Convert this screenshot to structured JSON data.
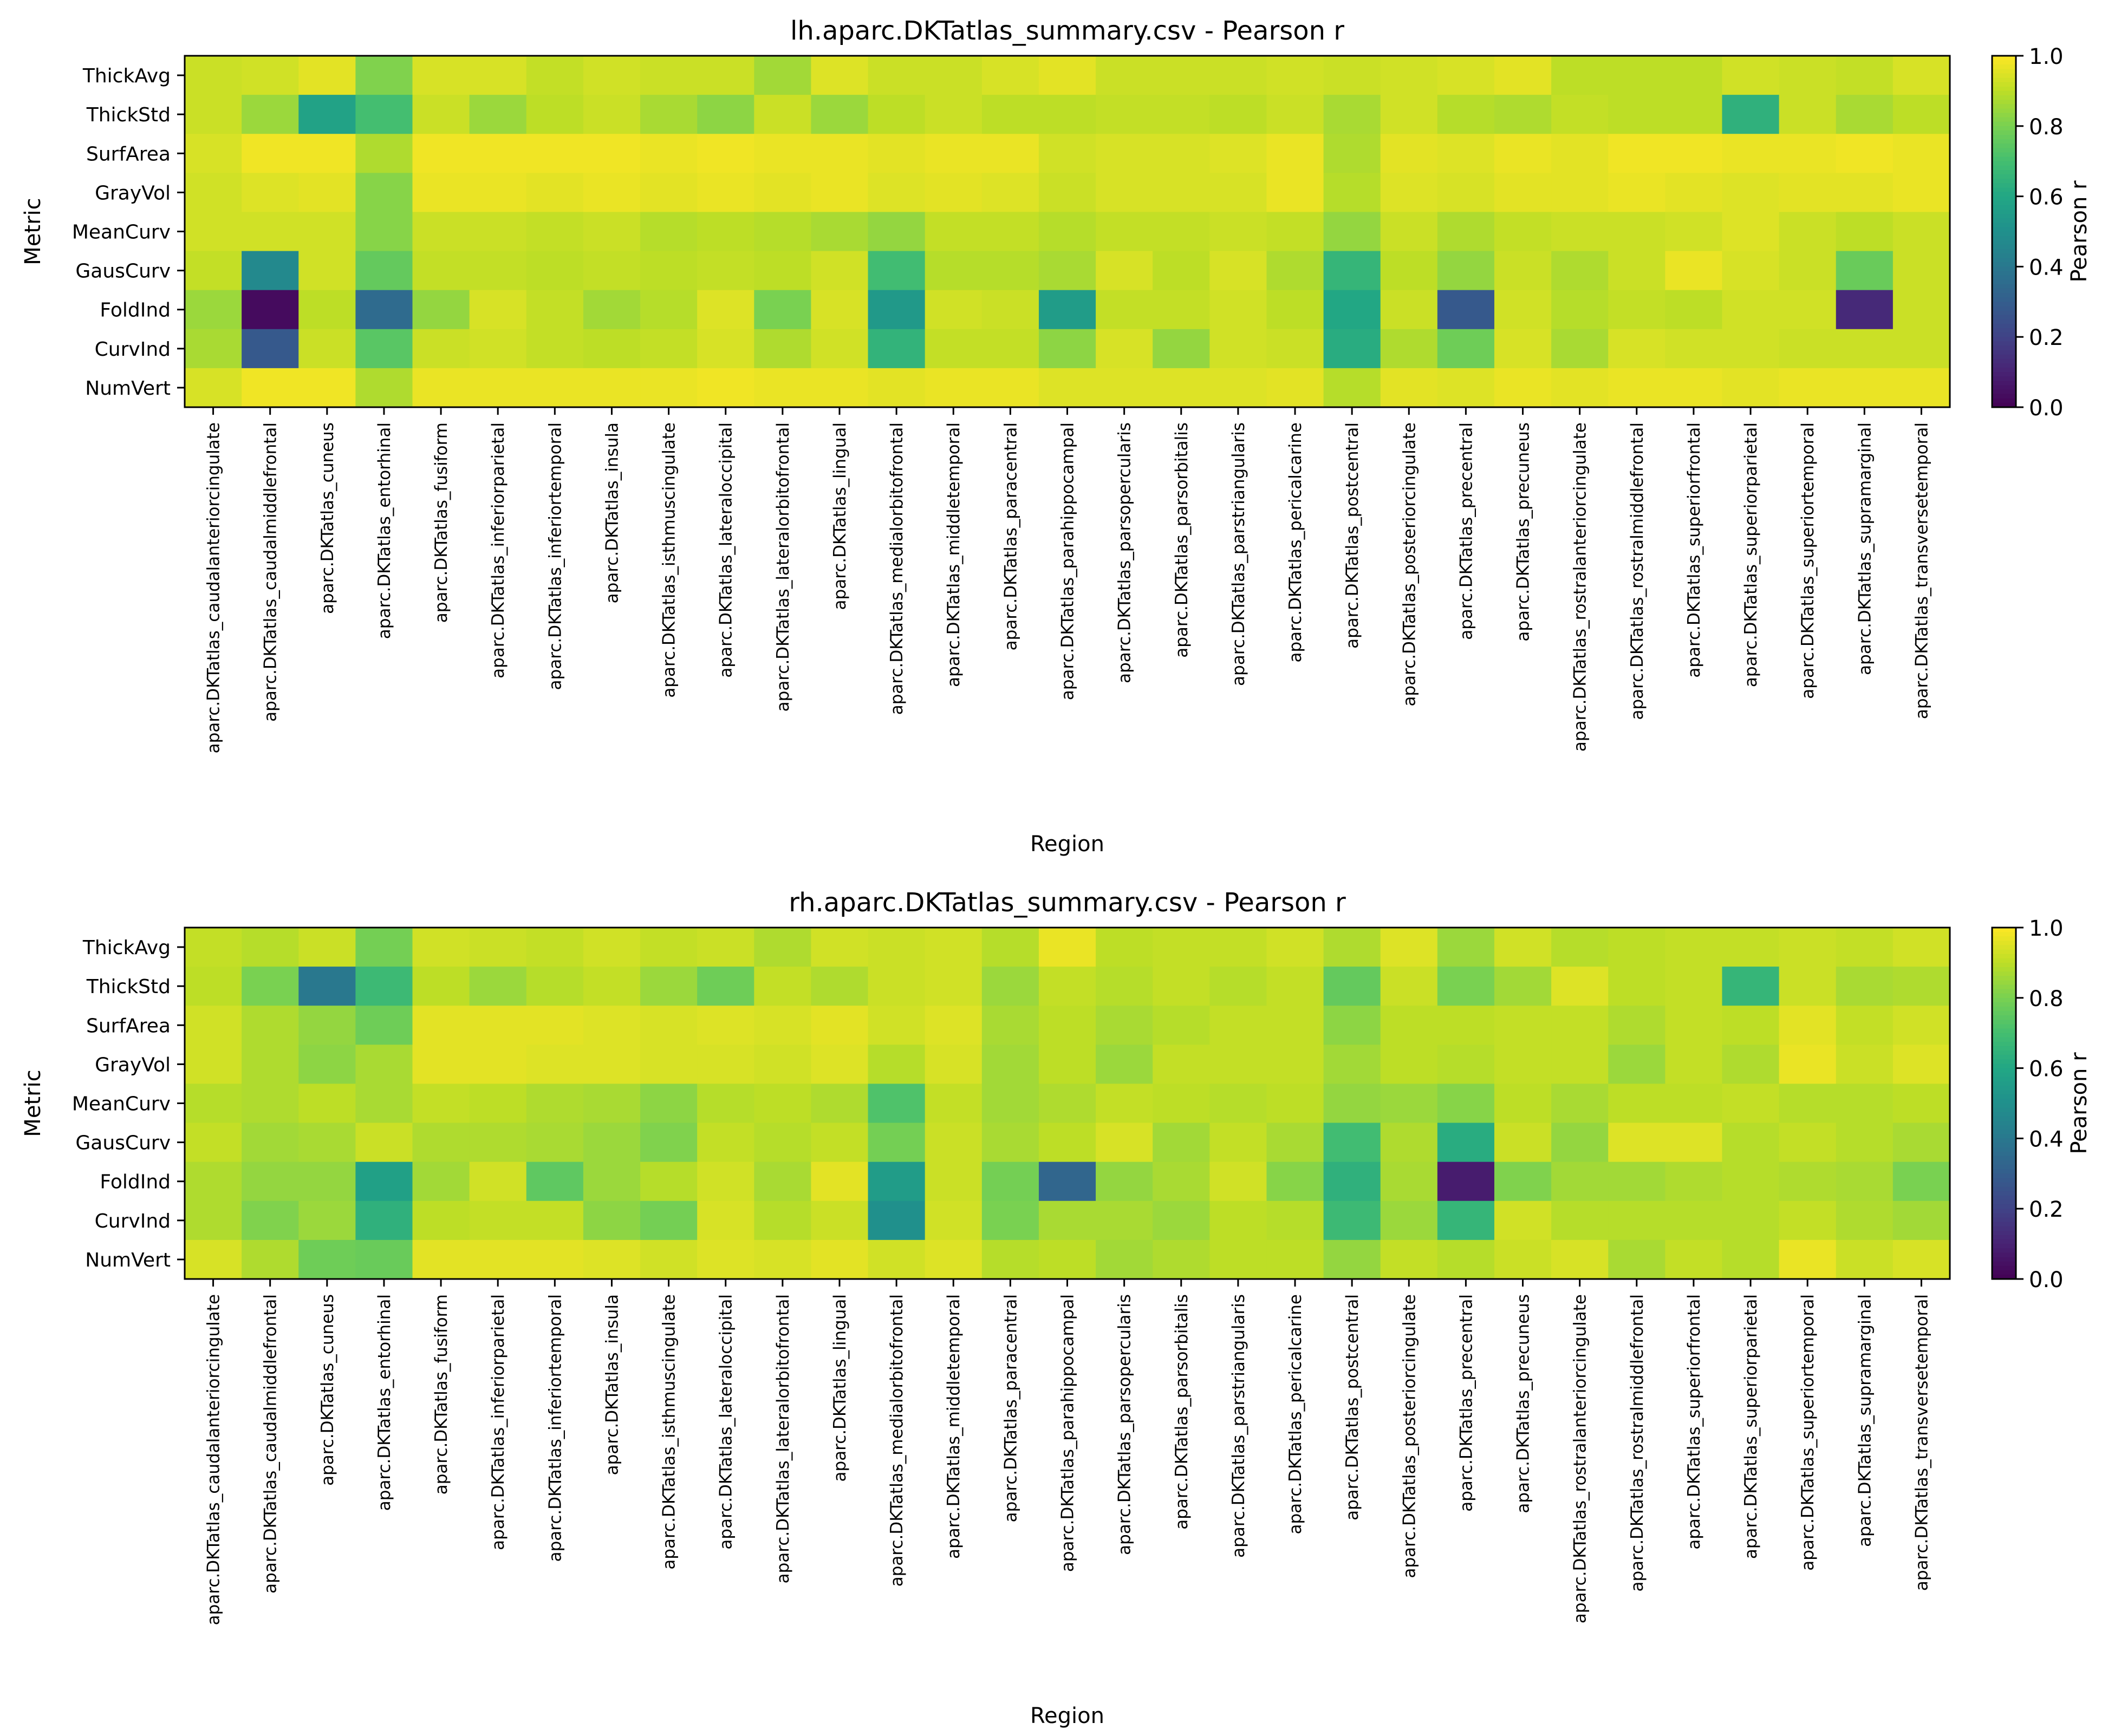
{
  "chart_data": [
    {
      "type": "heatmap",
      "title": "lh.aparc.DKTatlas_summary.csv - Pearson r",
      "xlabel": "Region",
      "ylabel": "Metric",
      "colorbar": {
        "label": "Pearson r",
        "range": [
          0.0,
          1.0
        ],
        "ticks": [
          "0.0",
          "0.2",
          "0.4",
          "0.6",
          "0.8",
          "1.0"
        ],
        "colormap": "viridis"
      },
      "rows": [
        "ThickAvg",
        "ThickStd",
        "SurfArea",
        "GrayVol",
        "MeanCurv",
        "GausCurv",
        "FoldInd",
        "CurvInd",
        "NumVert"
      ],
      "columns": [
        "aparc.DKTatlas_caudalanteriorcingulate",
        "aparc.DKTatlas_caudalmiddlefrontal",
        "aparc.DKTatlas_cuneus",
        "aparc.DKTatlas_entorhinal",
        "aparc.DKTatlas_fusiform",
        "aparc.DKTatlas_inferiorparietal",
        "aparc.DKTatlas_inferiortemporal",
        "aparc.DKTatlas_insula",
        "aparc.DKTatlas_isthmuscingulate",
        "aparc.DKTatlas_lateraloccipital",
        "aparc.DKTatlas_lateralorbitofrontal",
        "aparc.DKTatlas_lingual",
        "aparc.DKTatlas_medialorbitofrontal",
        "aparc.DKTatlas_middletemporal",
        "aparc.DKTatlas_paracentral",
        "aparc.DKTatlas_parahippocampal",
        "aparc.DKTatlas_parsopercularis",
        "aparc.DKTatlas_parsorbitalis",
        "aparc.DKTatlas_parstriangularis",
        "aparc.DKTatlas_pericalcarine",
        "aparc.DKTatlas_postcentral",
        "aparc.DKTatlas_posteriorcingulate",
        "aparc.DKTatlas_precentral",
        "aparc.DKTatlas_precuneus",
        "aparc.DKTatlas_rostralanteriorcingulate",
        "aparc.DKTatlas_rostralmiddlefrontal",
        "aparc.DKTatlas_superiorfrontal",
        "aparc.DKTatlas_superiorparietal",
        "aparc.DKTatlas_superiortemporal",
        "aparc.DKTatlas_supramarginal",
        "aparc.DKTatlas_transversetemporal"
      ],
      "values": [
        [
          0.92,
          0.93,
          0.96,
          0.81,
          0.94,
          0.94,
          0.91,
          0.93,
          0.92,
          0.92,
          0.86,
          0.95,
          0.92,
          0.92,
          0.94,
          0.96,
          0.92,
          0.92,
          0.92,
          0.93,
          0.92,
          0.93,
          0.94,
          0.96,
          0.9,
          0.9,
          0.9,
          0.93,
          0.92,
          0.91,
          0.94
        ],
        [
          0.92,
          0.85,
          0.58,
          0.7,
          0.92,
          0.85,
          0.9,
          0.92,
          0.87,
          0.83,
          0.92,
          0.85,
          0.9,
          0.92,
          0.9,
          0.9,
          0.91,
          0.91,
          0.9,
          0.92,
          0.87,
          0.93,
          0.89,
          0.88,
          0.91,
          0.9,
          0.9,
          0.64,
          0.92,
          0.87,
          0.9
        ],
        [
          0.94,
          0.98,
          0.98,
          0.88,
          0.98,
          0.98,
          0.98,
          0.98,
          0.97,
          0.98,
          0.97,
          0.97,
          0.96,
          0.97,
          0.97,
          0.93,
          0.94,
          0.94,
          0.95,
          0.97,
          0.88,
          0.96,
          0.95,
          0.97,
          0.96,
          0.98,
          0.98,
          0.97,
          0.97,
          0.98,
          0.97
        ],
        [
          0.93,
          0.95,
          0.96,
          0.82,
          0.97,
          0.97,
          0.96,
          0.97,
          0.96,
          0.97,
          0.96,
          0.97,
          0.95,
          0.96,
          0.95,
          0.92,
          0.94,
          0.94,
          0.94,
          0.97,
          0.89,
          0.95,
          0.94,
          0.96,
          0.96,
          0.97,
          0.96,
          0.95,
          0.96,
          0.96,
          0.97
        ],
        [
          0.93,
          0.93,
          0.93,
          0.82,
          0.92,
          0.92,
          0.91,
          0.92,
          0.89,
          0.9,
          0.89,
          0.87,
          0.84,
          0.91,
          0.91,
          0.89,
          0.91,
          0.91,
          0.92,
          0.91,
          0.84,
          0.92,
          0.88,
          0.91,
          0.92,
          0.92,
          0.93,
          0.95,
          0.92,
          0.9,
          0.92
        ],
        [
          0.91,
          0.47,
          0.93,
          0.76,
          0.91,
          0.91,
          0.9,
          0.91,
          0.9,
          0.91,
          0.9,
          0.93,
          0.69,
          0.89,
          0.89,
          0.87,
          0.94,
          0.9,
          0.94,
          0.88,
          0.66,
          0.9,
          0.84,
          0.92,
          0.88,
          0.92,
          0.97,
          0.94,
          0.92,
          0.77,
          0.92
        ],
        [
          0.85,
          0.03,
          0.9,
          0.35,
          0.84,
          0.94,
          0.91,
          0.86,
          0.89,
          0.95,
          0.8,
          0.94,
          0.54,
          0.93,
          0.92,
          0.55,
          0.91,
          0.91,
          0.93,
          0.9,
          0.6,
          0.92,
          0.28,
          0.93,
          0.89,
          0.91,
          0.9,
          0.93,
          0.93,
          0.12,
          0.92
        ],
        [
          0.87,
          0.28,
          0.92,
          0.74,
          0.92,
          0.93,
          0.91,
          0.9,
          0.91,
          0.94,
          0.88,
          0.93,
          0.65,
          0.91,
          0.91,
          0.83,
          0.94,
          0.84,
          0.93,
          0.92,
          0.62,
          0.88,
          0.78,
          0.94,
          0.87,
          0.94,
          0.93,
          0.93,
          0.92,
          0.92,
          0.92
        ],
        [
          0.94,
          0.98,
          0.98,
          0.88,
          0.97,
          0.97,
          0.97,
          0.97,
          0.97,
          0.98,
          0.97,
          0.97,
          0.96,
          0.97,
          0.97,
          0.95,
          0.95,
          0.95,
          0.95,
          0.96,
          0.89,
          0.96,
          0.95,
          0.97,
          0.96,
          0.97,
          0.97,
          0.96,
          0.97,
          0.97,
          0.97
        ]
      ]
    },
    {
      "type": "heatmap",
      "title": "rh.aparc.DKTatlas_summary.csv - Pearson r",
      "xlabel": "Region",
      "ylabel": "Metric",
      "colorbar": {
        "label": "Pearson r",
        "range": [
          0.0,
          1.0
        ],
        "ticks": [
          "0.0",
          "0.2",
          "0.4",
          "0.6",
          "0.8",
          "1.0"
        ],
        "colormap": "viridis"
      },
      "rows": [
        "ThickAvg",
        "ThickStd",
        "SurfArea",
        "GrayVol",
        "MeanCurv",
        "GausCurv",
        "FoldInd",
        "CurvInd",
        "NumVert"
      ],
      "columns": [
        "aparc.DKTatlas_caudalanteriorcingulate",
        "aparc.DKTatlas_caudalmiddlefrontal",
        "aparc.DKTatlas_cuneus",
        "aparc.DKTatlas_entorhinal",
        "aparc.DKTatlas_fusiform",
        "aparc.DKTatlas_inferiorparietal",
        "aparc.DKTatlas_inferiortemporal",
        "aparc.DKTatlas_insula",
        "aparc.DKTatlas_isthmuscingulate",
        "aparc.DKTatlas_lateraloccipital",
        "aparc.DKTatlas_lateralorbitofrontal",
        "aparc.DKTatlas_lingual",
        "aparc.DKTatlas_medialorbitofrontal",
        "aparc.DKTatlas_middletemporal",
        "aparc.DKTatlas_paracentral",
        "aparc.DKTatlas_parahippocampal",
        "aparc.DKTatlas_parsopercularis",
        "aparc.DKTatlas_parsorbitalis",
        "aparc.DKTatlas_parstriangularis",
        "aparc.DKTatlas_pericalcarine",
        "aparc.DKTatlas_postcentral",
        "aparc.DKTatlas_posteriorcingulate",
        "aparc.DKTatlas_precentral",
        "aparc.DKTatlas_precuneus",
        "aparc.DKTatlas_rostralanteriorcingulate",
        "aparc.DKTatlas_rostralmiddlefrontal",
        "aparc.DKTatlas_superiorfrontal",
        "aparc.DKTatlas_superiorparietal",
        "aparc.DKTatlas_superiortemporal",
        "aparc.DKTatlas_supramarginal",
        "aparc.DKTatlas_transversetemporal"
      ],
      "values": [
        [
          0.91,
          0.89,
          0.92,
          0.79,
          0.93,
          0.92,
          0.91,
          0.93,
          0.91,
          0.92,
          0.88,
          0.93,
          0.92,
          0.93,
          0.89,
          0.97,
          0.9,
          0.91,
          0.91,
          0.93,
          0.88,
          0.95,
          0.85,
          0.93,
          0.89,
          0.9,
          0.91,
          0.91,
          0.92,
          0.91,
          0.93
        ],
        [
          0.9,
          0.8,
          0.4,
          0.68,
          0.9,
          0.85,
          0.89,
          0.91,
          0.85,
          0.78,
          0.91,
          0.88,
          0.92,
          0.93,
          0.85,
          0.91,
          0.89,
          0.91,
          0.89,
          0.91,
          0.76,
          0.92,
          0.8,
          0.86,
          0.95,
          0.9,
          0.91,
          0.66,
          0.92,
          0.87,
          0.88
        ],
        [
          0.93,
          0.88,
          0.84,
          0.78,
          0.96,
          0.96,
          0.96,
          0.95,
          0.94,
          0.95,
          0.94,
          0.96,
          0.93,
          0.95,
          0.87,
          0.9,
          0.87,
          0.89,
          0.91,
          0.91,
          0.83,
          0.9,
          0.9,
          0.91,
          0.91,
          0.88,
          0.91,
          0.9,
          0.96,
          0.91,
          0.93
        ],
        [
          0.93,
          0.88,
          0.83,
          0.87,
          0.96,
          0.96,
          0.95,
          0.95,
          0.94,
          0.94,
          0.93,
          0.95,
          0.89,
          0.94,
          0.86,
          0.9,
          0.85,
          0.91,
          0.91,
          0.91,
          0.86,
          0.9,
          0.89,
          0.91,
          0.91,
          0.85,
          0.91,
          0.88,
          0.97,
          0.92,
          0.95
        ],
        [
          0.89,
          0.88,
          0.9,
          0.87,
          0.91,
          0.9,
          0.88,
          0.87,
          0.83,
          0.89,
          0.9,
          0.88,
          0.72,
          0.91,
          0.86,
          0.88,
          0.91,
          0.9,
          0.89,
          0.9,
          0.84,
          0.85,
          0.82,
          0.9,
          0.87,
          0.9,
          0.9,
          0.91,
          0.89,
          0.89,
          0.9
        ],
        [
          0.91,
          0.86,
          0.87,
          0.92,
          0.88,
          0.88,
          0.87,
          0.85,
          0.81,
          0.91,
          0.89,
          0.91,
          0.79,
          0.92,
          0.87,
          0.9,
          0.94,
          0.86,
          0.91,
          0.87,
          0.69,
          0.88,
          0.62,
          0.92,
          0.84,
          0.95,
          0.95,
          0.89,
          0.91,
          0.89,
          0.87
        ],
        [
          0.88,
          0.84,
          0.84,
          0.57,
          0.86,
          0.93,
          0.75,
          0.85,
          0.89,
          0.93,
          0.87,
          0.96,
          0.55,
          0.92,
          0.79,
          0.33,
          0.84,
          0.87,
          0.93,
          0.82,
          0.64,
          0.87,
          0.08,
          0.81,
          0.86,
          0.86,
          0.88,
          0.89,
          0.88,
          0.87,
          0.8
        ],
        [
          0.88,
          0.81,
          0.85,
          0.64,
          0.9,
          0.91,
          0.91,
          0.83,
          0.79,
          0.94,
          0.89,
          0.92,
          0.5,
          0.93,
          0.8,
          0.87,
          0.87,
          0.85,
          0.9,
          0.89,
          0.68,
          0.85,
          0.66,
          0.93,
          0.89,
          0.89,
          0.89,
          0.89,
          0.91,
          0.88,
          0.86
        ],
        [
          0.94,
          0.88,
          0.78,
          0.77,
          0.96,
          0.96,
          0.96,
          0.95,
          0.93,
          0.95,
          0.94,
          0.96,
          0.93,
          0.95,
          0.89,
          0.9,
          0.86,
          0.88,
          0.9,
          0.9,
          0.84,
          0.91,
          0.89,
          0.92,
          0.94,
          0.87,
          0.91,
          0.89,
          0.97,
          0.92,
          0.94
        ]
      ]
    }
  ]
}
